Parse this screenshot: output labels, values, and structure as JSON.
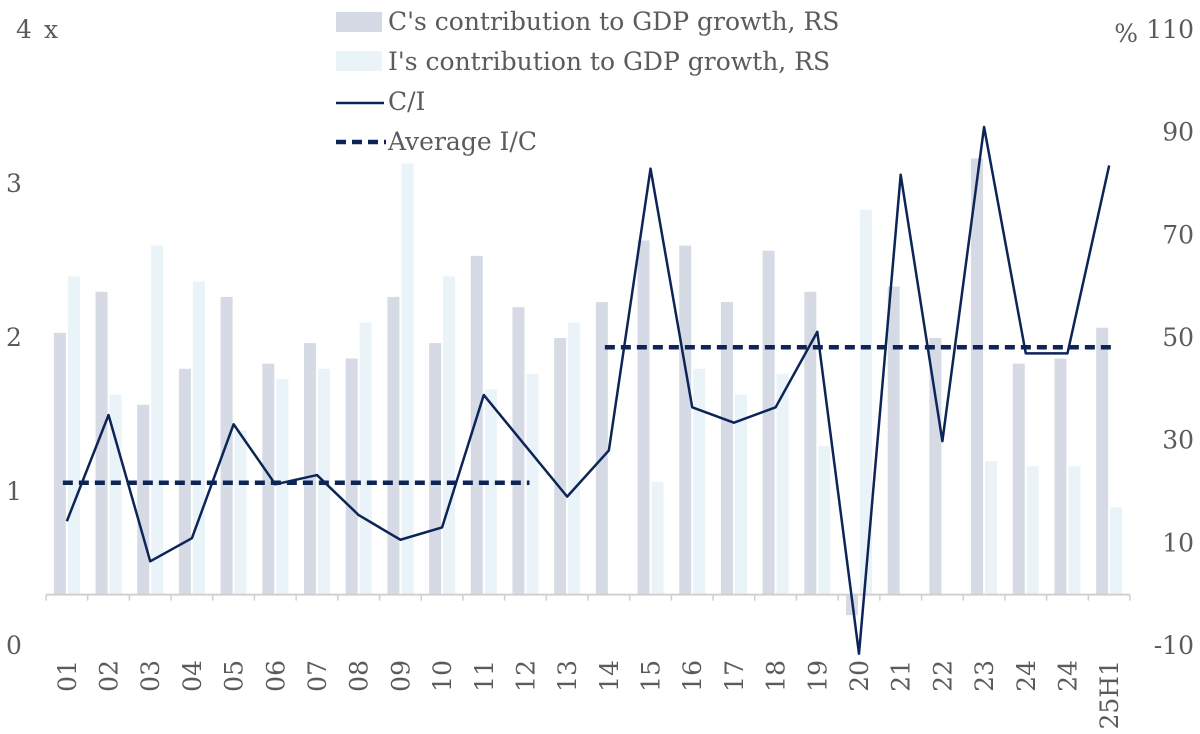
{
  "chart_data": {
    "type": "bar",
    "categories": [
      "01",
      "02",
      "03",
      "04",
      "05",
      "06",
      "07",
      "08",
      "09",
      "10",
      "11",
      "12",
      "13",
      "14",
      "15",
      "16",
      "17",
      "18",
      "19",
      "20",
      "21",
      "22",
      "23",
      "24",
      "24",
      "25H1"
    ],
    "left_axis": {
      "unit": "x",
      "ylim": [
        0,
        4
      ],
      "ticks": [
        "0",
        "1",
        "2",
        "3",
        "4"
      ]
    },
    "right_axis": {
      "unit": "%",
      "ylim": [
        -10,
        110
      ],
      "ticks": [
        "-10",
        "10",
        "30",
        "50",
        "70",
        "90",
        "110"
      ]
    },
    "series": [
      {
        "name": "C's contribution to GDP growth, RS",
        "kind": "bar",
        "axis": "right",
        "color": "#d5dae5",
        "values": [
          51,
          59,
          37,
          44,
          58,
          45,
          49,
          46,
          58,
          49,
          66,
          56,
          50,
          57,
          69,
          68,
          57,
          67,
          59,
          -4,
          60,
          50,
          85,
          45,
          46,
          52
        ]
      },
      {
        "name": "I's contribution to GDP growth, RS",
        "kind": "bar",
        "axis": "right",
        "color": "#e9f3f8",
        "values": [
          62,
          39,
          68,
          61,
          32,
          42,
          44,
          53,
          84,
          62,
          40,
          43,
          53,
          0,
          22,
          44,
          39,
          43,
          29,
          75,
          0,
          0,
          26,
          25,
          25,
          17
        ]
      },
      {
        "name": "C/I",
        "kind": "line",
        "axis": "left",
        "color": "#0d2457",
        "dash": "solid",
        "values": [
          0.81,
          1.5,
          0.55,
          0.7,
          1.44,
          1.05,
          1.11,
          0.85,
          0.69,
          0.77,
          1.63,
          1.3,
          0.97,
          1.27,
          3.1,
          1.55,
          1.45,
          1.55,
          2.04,
          -0.05,
          3.06,
          1.33,
          3.37,
          1.9,
          1.9,
          3.12
        ]
      },
      {
        "name": "Average I/C",
        "kind": "line",
        "axis": "left",
        "color": "#0d2457",
        "dash": "dashed",
        "segments": [
          {
            "from_index": 0,
            "to_index": 11,
            "value": 1.06
          },
          {
            "from_index": 13,
            "to_index": 25,
            "value": 1.94
          }
        ]
      }
    ],
    "grid": false,
    "legend_position": "top-center"
  }
}
